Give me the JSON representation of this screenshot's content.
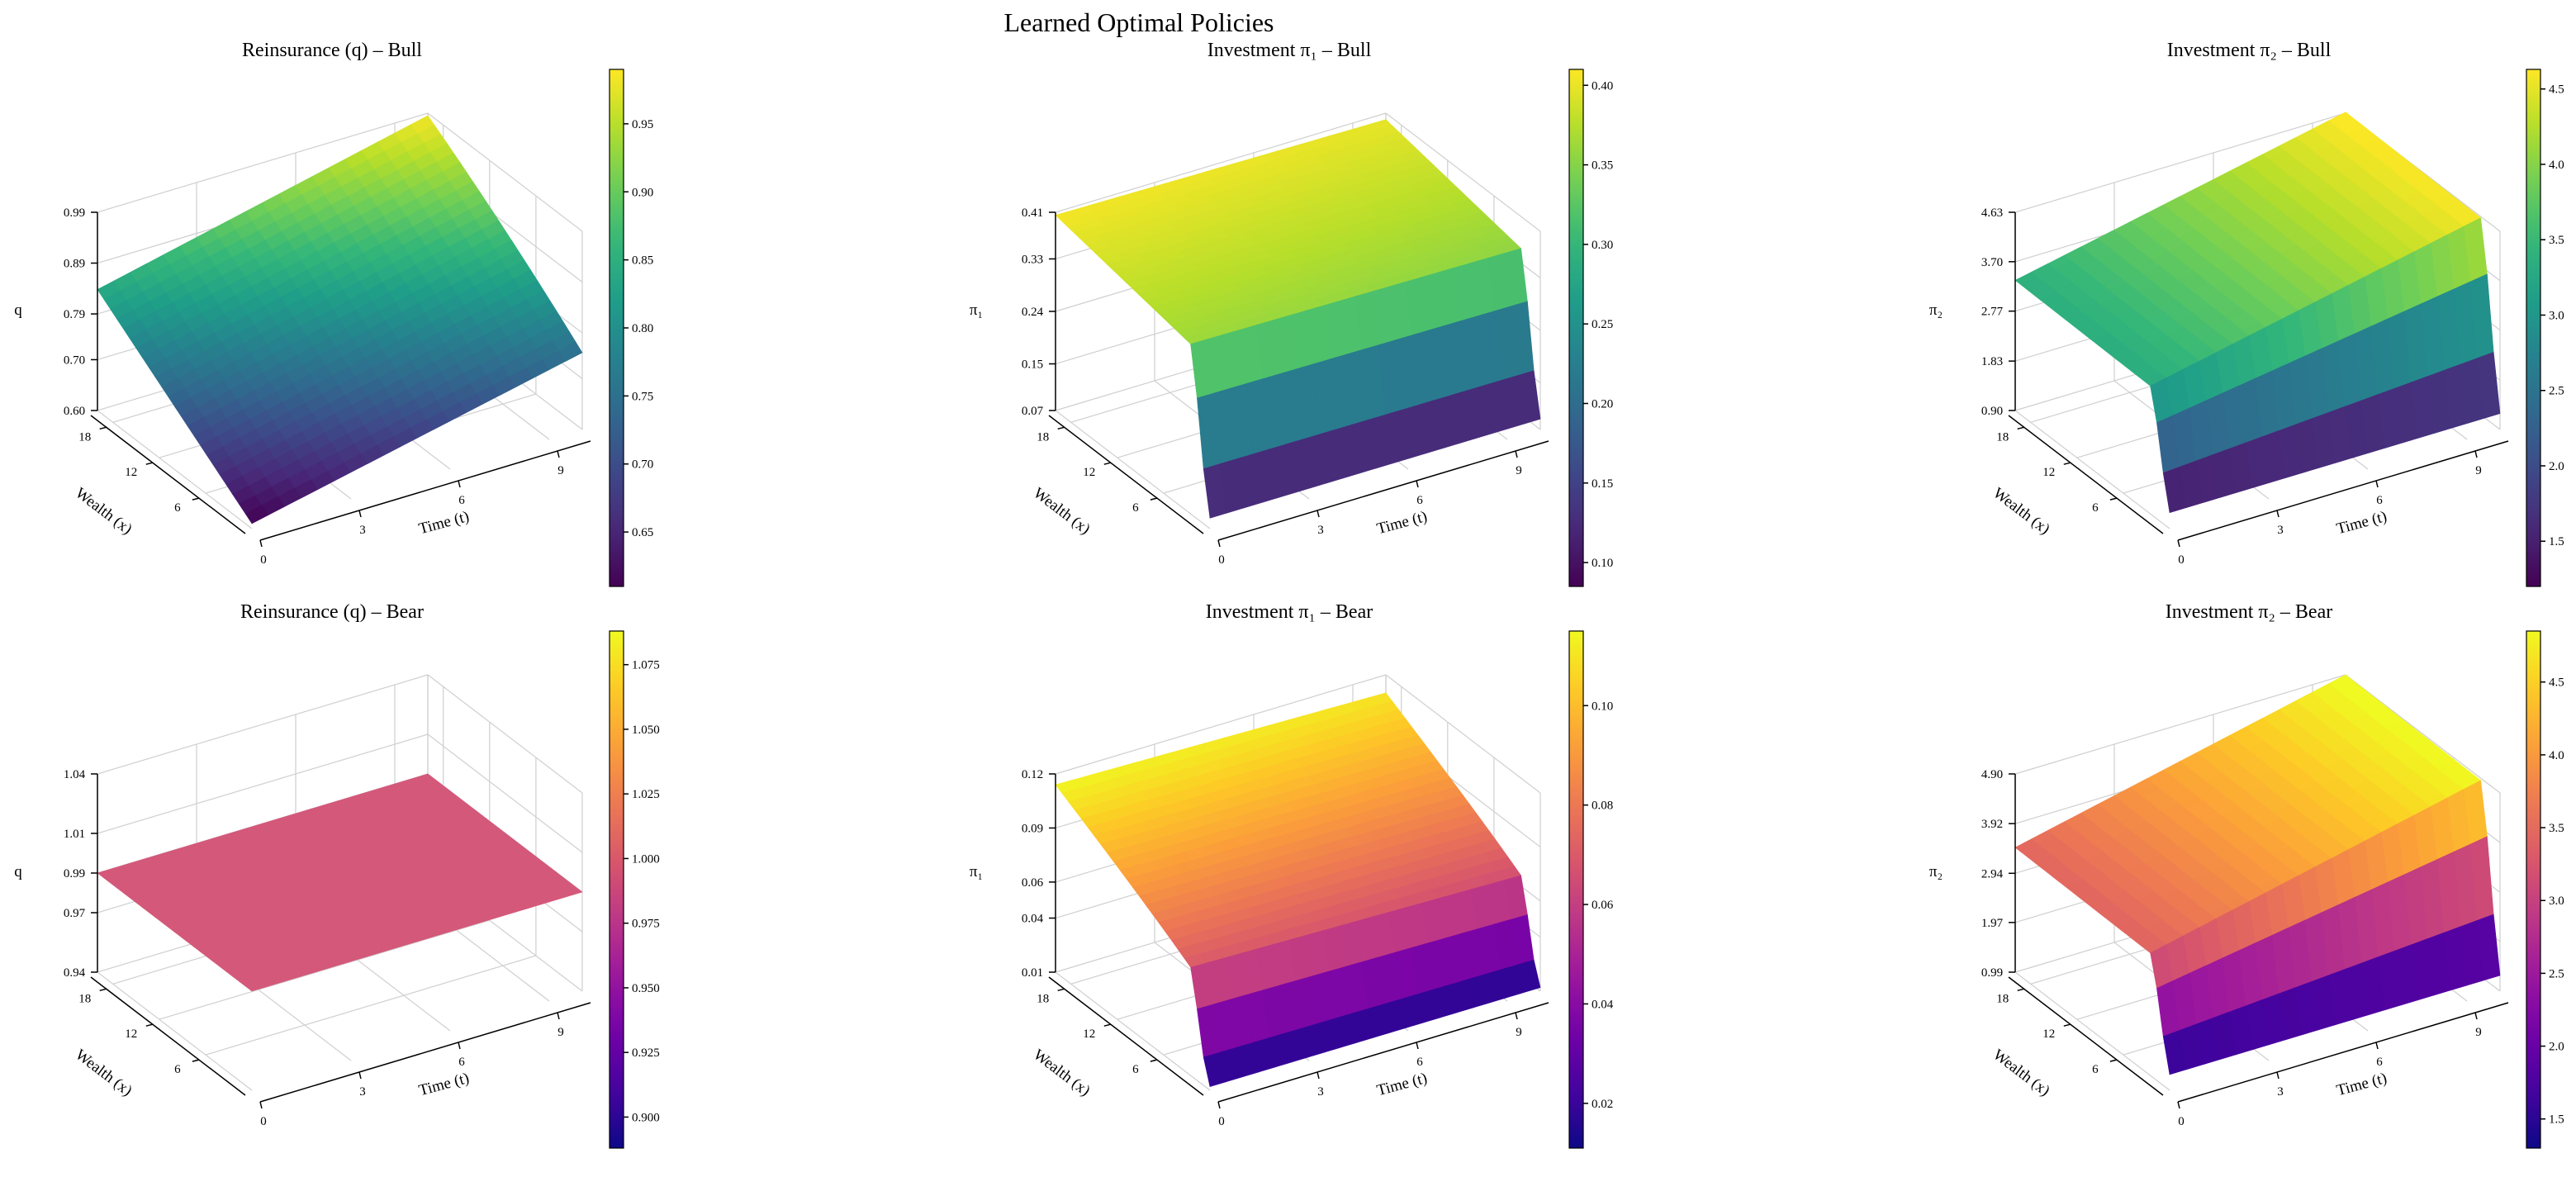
{
  "figure": {
    "title": "Learned Optimal Policies"
  },
  "chart_data": [
    {
      "type": "surface",
      "title": "Reinsurance (q) – Bull",
      "xlabel": "Time (t)",
      "ylabel": "Wealth (x)",
      "zlabel": "q",
      "colormap": "viridis",
      "x_range": [
        0,
        10
      ],
      "y_range": [
        0,
        20
      ],
      "x_ticks": [
        "0",
        "3",
        "6",
        "9"
      ],
      "y_ticks": [
        "6",
        "12",
        "18"
      ],
      "z_ticks": [
        "0.60",
        "0.70",
        "0.79",
        "0.89",
        "0.99"
      ],
      "zlim": [
        0.6,
        0.99
      ],
      "colorbar_ticks": [
        "0.65",
        "0.70",
        "0.75",
        "0.80",
        "0.85",
        "0.90",
        "0.95"
      ],
      "colorbar_range": [
        0.61,
        0.99
      ],
      "surface_description": "q rises smoothly from ~0.61 at low time / low wealth to ~0.99 at high time / high wealth"
    },
    {
      "type": "surface",
      "title": "Investment π₁ – Bull",
      "xlabel": "Time (t)",
      "ylabel": "Wealth (x)",
      "zlabel": "π₁",
      "colormap": "viridis",
      "x_range": [
        0,
        10
      ],
      "y_range": [
        0,
        20
      ],
      "x_ticks": [
        "0",
        "3",
        "6",
        "9"
      ],
      "y_ticks": [
        "6",
        "12",
        "18"
      ],
      "z_ticks": [
        "0.07",
        "0.15",
        "0.24",
        "0.33",
        "0.41"
      ],
      "zlim": [
        0.07,
        0.41
      ],
      "colorbar_ticks": [
        "0.10",
        "0.15",
        "0.20",
        "0.25",
        "0.30",
        "0.35",
        "0.40"
      ],
      "colorbar_range": [
        0.085,
        0.41
      ],
      "surface_description": "Plateau near 0.36–0.41 for wealth above ~2, dropping sharply to ~0.09 at very low wealth"
    },
    {
      "type": "surface",
      "title": "Investment π₂ – Bull",
      "xlabel": "Time (t)",
      "ylabel": "Wealth (x)",
      "zlabel": "π₂",
      "colormap": "viridis",
      "x_range": [
        0,
        10
      ],
      "y_range": [
        0,
        20
      ],
      "x_ticks": [
        "0",
        "3",
        "6",
        "9"
      ],
      "y_ticks": [
        "6",
        "12",
        "18"
      ],
      "z_ticks": [
        "0.90",
        "1.83",
        "2.77",
        "3.70",
        "4.63"
      ],
      "zlim": [
        0.9,
        4.63
      ],
      "colorbar_ticks": [
        "1.5",
        "2.0",
        "2.5",
        "3.0",
        "3.5",
        "4.0",
        "4.5"
      ],
      "colorbar_range": [
        1.2,
        4.63
      ],
      "surface_description": "Plateau rising from ~3.3 to ~4.6 with time for moderate/high wealth, dropping to ~1.2 at very low wealth"
    },
    {
      "type": "surface",
      "title": "Reinsurance (q) – Bear",
      "xlabel": "Time (t)",
      "ylabel": "Wealth (x)",
      "zlabel": "q",
      "colormap": "plasma",
      "x_range": [
        0,
        10
      ],
      "y_range": [
        0,
        20
      ],
      "x_ticks": [
        "0",
        "3",
        "6",
        "9"
      ],
      "y_ticks": [
        "6",
        "12",
        "18"
      ],
      "z_ticks": [
        "0.94",
        "0.97",
        "0.99",
        "1.01",
        "1.04"
      ],
      "zlim": [
        0.94,
        1.04
      ],
      "colorbar_ticks": [
        "0.900",
        "0.925",
        "0.950",
        "0.975",
        "1.000",
        "1.025",
        "1.050",
        "1.075"
      ],
      "colorbar_range": [
        0.888,
        1.088
      ],
      "surface_description": "Flat surface at q = 0.99 everywhere"
    },
    {
      "type": "surface",
      "title": "Investment π₁ – Bear",
      "xlabel": "Time (t)",
      "ylabel": "Wealth (x)",
      "zlabel": "π₁",
      "colormap": "plasma",
      "x_range": [
        0,
        10
      ],
      "y_range": [
        0,
        20
      ],
      "x_ticks": [
        "0",
        "3",
        "6",
        "9"
      ],
      "y_ticks": [
        "6",
        "12",
        "18"
      ],
      "z_ticks": [
        "0.01",
        "0.04",
        "0.06",
        "0.09",
        "0.12"
      ],
      "zlim": [
        0.01,
        0.12
      ],
      "colorbar_ticks": [
        "0.02",
        "0.04",
        "0.06",
        "0.08",
        "0.10"
      ],
      "colorbar_range": [
        0.011,
        0.115
      ],
      "surface_description": "High (~0.11) at high wealth, declining toward ~0.06 at moderate wealth and ~0.012 at very low wealth"
    },
    {
      "type": "surface",
      "title": "Investment π₂ – Bear",
      "xlabel": "Time (t)",
      "ylabel": "Wealth (x)",
      "zlabel": "π₂",
      "colormap": "plasma",
      "x_range": [
        0,
        10
      ],
      "y_range": [
        0,
        20
      ],
      "x_ticks": [
        "0",
        "3",
        "6",
        "9"
      ],
      "y_ticks": [
        "6",
        "12",
        "18"
      ],
      "z_ticks": [
        "0.99",
        "1.97",
        "2.94",
        "3.92",
        "4.90"
      ],
      "zlim": [
        0.99,
        4.9
      ],
      "colorbar_ticks": [
        "1.5",
        "2.0",
        "2.5",
        "3.0",
        "3.5",
        "4.0",
        "4.5"
      ],
      "colorbar_range": [
        1.3,
        4.85
      ],
      "surface_description": "Plateau rising from ~3.4 to ~4.85 with time for moderate/high wealth, dropping to ~1.3 at very low wealth"
    }
  ]
}
